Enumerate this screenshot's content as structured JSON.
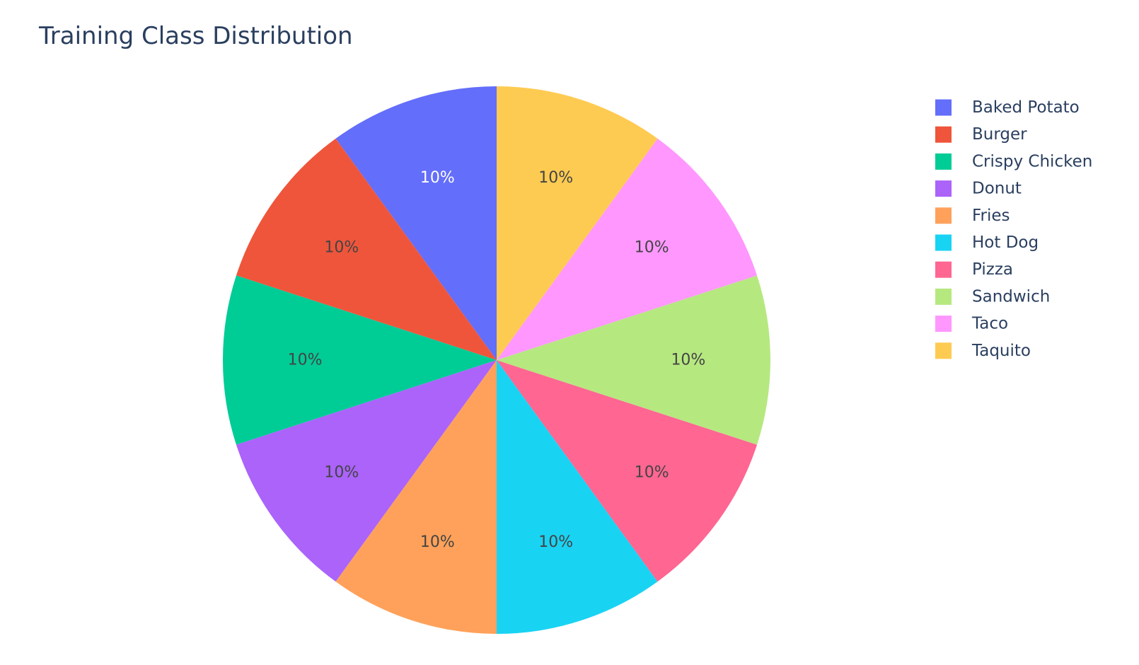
{
  "chart_data": {
    "type": "pie",
    "title": "Training Class Distribution",
    "categories": [
      "Baked Potato",
      "Burger",
      "Crispy Chicken",
      "Donut",
      "Fries",
      "Hot Dog",
      "Pizza",
      "Sandwich",
      "Taco",
      "Taquito"
    ],
    "values": [
      10,
      10,
      10,
      10,
      10,
      10,
      10,
      10,
      10,
      10
    ],
    "labels": [
      "10%",
      "10%",
      "10%",
      "10%",
      "10%",
      "10%",
      "10%",
      "10%",
      "10%",
      "10%"
    ],
    "colors": [
      "#636efa",
      "#EF553B",
      "#00cc96",
      "#ab63fa",
      "#FFA15A",
      "#19d3f3",
      "#FF6692",
      "#B6E880",
      "#FF97FF",
      "#FECB52"
    ],
    "label_colors": [
      "#ffffff",
      "#444444",
      "#444444",
      "#444444",
      "#444444",
      "#444444",
      "#444444",
      "#444444",
      "#444444",
      "#444444"
    ],
    "direction": "counterclockwise",
    "start": "top",
    "legend": {
      "position": "right"
    }
  }
}
